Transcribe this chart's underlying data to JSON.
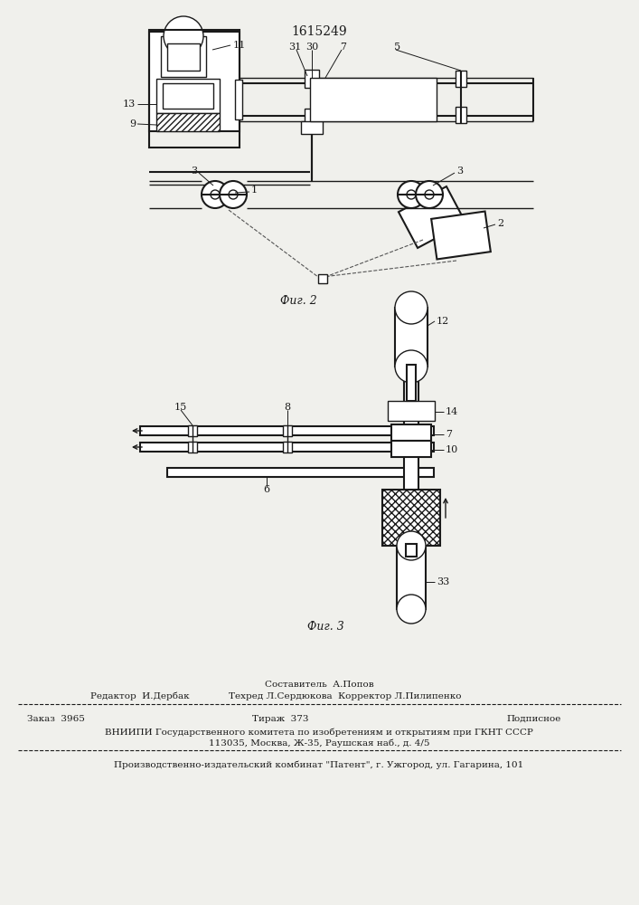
{
  "patent_number": "1615249",
  "bg_color": "#f0f0ec",
  "line_color": "#1a1a1a",
  "fig2_caption": "Фиг. 2",
  "fig3_caption": "Фиг. 3",
  "footer": {
    "editor": "Редактор  И.Дербак",
    "composer": "Составитель  А.Попов",
    "techred": "Техред Л.Сердюкова",
    "corrector": "Корректор Л.Пилипенко",
    "order": "Заказ  3965",
    "tirazh": "Тираж  373",
    "podpisnoe": "Подписное",
    "vniip_line": "ВНИИПИ Государственного комитета по изобретениям и открытиям при ГКНТ СССР",
    "address": "113035, Москва, Ж-35, Раушская наб., д. 4/5",
    "publisher": "Производственно-издательский комбинат \"Патент\", г. Ужгород, ул. Гагарина, 101"
  }
}
